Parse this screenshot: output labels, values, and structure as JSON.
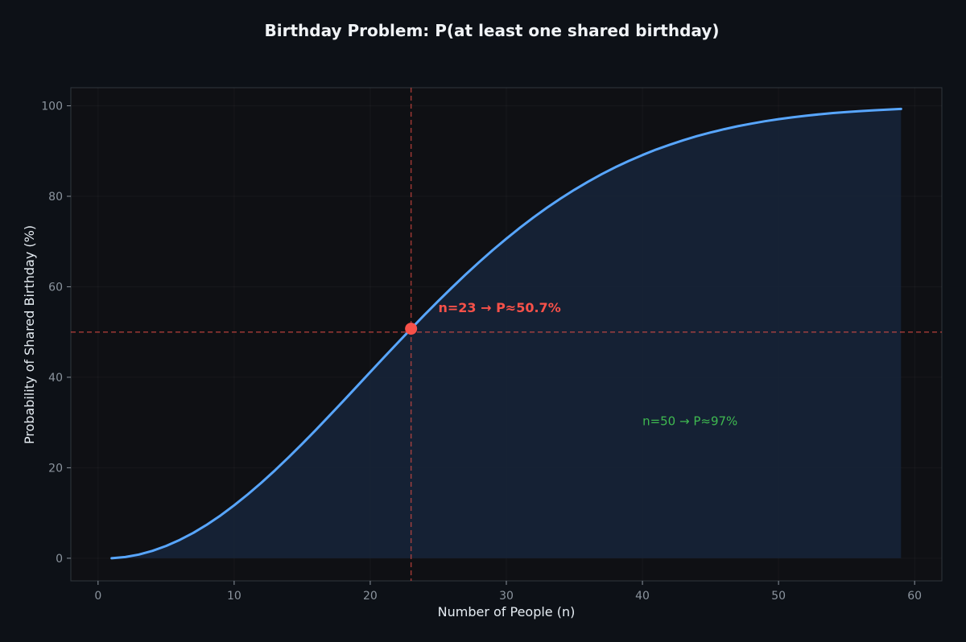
{
  "chart_data": {
    "type": "line",
    "title": "Birthday Problem: P(at least one shared birthday)",
    "xlabel": "Number of People (n)",
    "ylabel": "Probability of Shared Birthday (%)",
    "xlim": [
      -2,
      62
    ],
    "ylim": [
      -5,
      104
    ],
    "xticks": [
      0,
      10,
      20,
      30,
      40,
      50,
      60
    ],
    "yticks": [
      0,
      20,
      40,
      60,
      80,
      100
    ],
    "grid": true,
    "fill_under": true,
    "series": [
      {
        "x": [
          1,
          2,
          3,
          4,
          5,
          6,
          7,
          8,
          9,
          10,
          11,
          12,
          13,
          14,
          15,
          16,
          17,
          18,
          19,
          20,
          21,
          22,
          23,
          24,
          25,
          26,
          27,
          28,
          29,
          30,
          31,
          32,
          33,
          34,
          35,
          36,
          37,
          38,
          39,
          40,
          41,
          42,
          43,
          44,
          45,
          46,
          47,
          48,
          49,
          50,
          51,
          52,
          53,
          54,
          55,
          56,
          57,
          58,
          59
        ],
        "y": [
          0.0,
          0.27,
          0.82,
          1.64,
          2.71,
          4.05,
          5.62,
          7.43,
          9.46,
          11.69,
          14.11,
          16.7,
          19.44,
          22.31,
          25.29,
          28.36,
          31.5,
          34.69,
          37.91,
          41.14,
          44.37,
          47.57,
          50.73,
          53.83,
          56.87,
          59.82,
          62.69,
          65.45,
          68.1,
          70.63,
          73.05,
          75.33,
          77.5,
          79.53,
          81.44,
          83.22,
          84.87,
          86.41,
          87.82,
          89.12,
          90.32,
          91.4,
          92.39,
          93.29,
          94.1,
          94.83,
          95.48,
          96.06,
          96.58,
          97.04,
          97.44,
          97.8,
          98.11,
          98.39,
          98.63,
          98.83,
          99.01,
          99.17,
          99.3
        ],
        "color": "#58a6ff"
      }
    ],
    "reference_lines": {
      "x": 23,
      "y": 50,
      "color": "#f85149"
    },
    "highlight_point": {
      "x": 23,
      "y": 50.73,
      "color": "#f85149"
    },
    "annotations": [
      {
        "text": "n=23 → P≈50.7%",
        "x": 25,
        "y": 55.5,
        "color": "#f85149"
      },
      {
        "text": "n=50 → P≈97%",
        "x": 40,
        "y": 30.5,
        "color": "#3fb950"
      }
    ]
  }
}
